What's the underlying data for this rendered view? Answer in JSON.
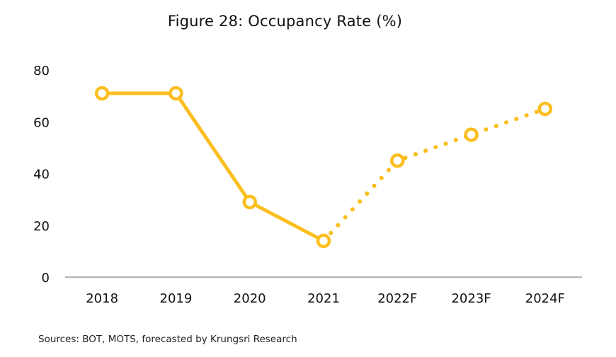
{
  "chart_data": {
    "type": "line",
    "title": "Figure 28: Occupancy Rate (%)",
    "categories": [
      "2018",
      "2019",
      "2020",
      "2021",
      "2022F",
      "2023F",
      "2024F"
    ],
    "series": [
      {
        "values": [
          71,
          71,
          29,
          14,
          45,
          55,
          65
        ],
        "actual_points": 4,
        "forecast_style": "dotted"
      }
    ],
    "ylim": [
      0,
      80
    ],
    "yticks": [
      "0",
      "20",
      "40",
      "60",
      "80"
    ],
    "grid": false,
    "color": "#FBBE1E",
    "source": "Sources: BOT, MOTS, forecasted by Krungsri Research"
  }
}
